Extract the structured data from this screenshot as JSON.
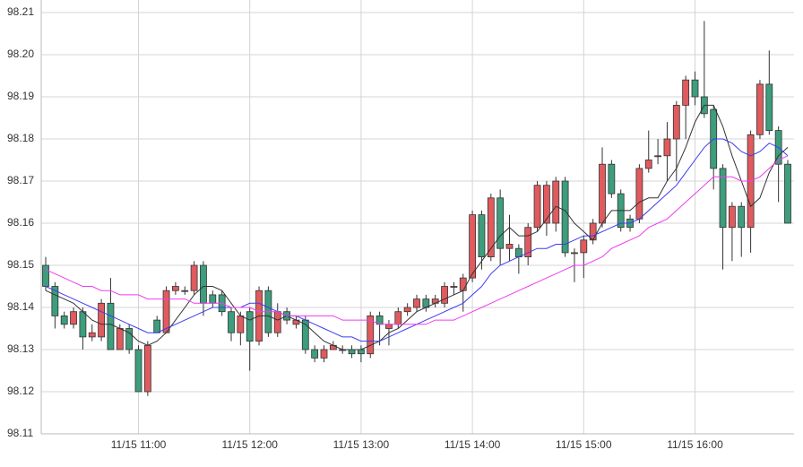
{
  "chart_data": {
    "type": "candlestick",
    "x": [
      "11/15 10:10",
      "11/15 10:15",
      "11/15 10:20",
      "11/15 10:25",
      "11/15 10:30",
      "11/15 10:35",
      "11/15 10:40",
      "11/15 10:45",
      "11/15 10:50",
      "11/15 10:55",
      "11/15 11:00",
      "11/15 11:05",
      "11/15 11:10",
      "11/15 11:15",
      "11/15 11:20",
      "11/15 11:25",
      "11/15 11:30",
      "11/15 11:35",
      "11/15 11:40",
      "11/15 11:45",
      "11/15 11:50",
      "11/15 11:55",
      "11/15 12:00",
      "11/15 12:05",
      "11/15 12:10",
      "11/15 12:15",
      "11/15 12:20",
      "11/15 12:25",
      "11/15 12:30",
      "11/15 12:35",
      "11/15 12:40",
      "11/15 12:45",
      "11/15 12:50",
      "11/15 12:55",
      "11/15 13:00",
      "11/15 13:05",
      "11/15 13:10",
      "11/15 13:15",
      "11/15 13:20",
      "11/15 13:25",
      "11/15 13:30",
      "11/15 13:35",
      "11/15 13:40",
      "11/15 13:45",
      "11/15 13:50",
      "11/15 13:55",
      "11/15 14:00",
      "11/15 14:05",
      "11/15 14:10",
      "11/15 14:15",
      "11/15 14:20",
      "11/15 14:25",
      "11/15 14:30",
      "11/15 14:35",
      "11/15 14:40",
      "11/15 14:45",
      "11/15 14:50",
      "11/15 14:55",
      "11/15 15:00",
      "11/15 15:05",
      "11/15 15:10",
      "11/15 15:15",
      "11/15 15:20",
      "11/15 15:25",
      "11/15 15:30",
      "11/15 15:35",
      "11/15 15:40",
      "11/15 15:45",
      "11/15 15:50",
      "11/15 15:55",
      "11/15 16:00",
      "11/15 16:05",
      "11/15 16:10",
      "11/15 16:15",
      "11/15 16:20",
      "11/15 16:25",
      "11/15 16:30",
      "11/15 16:35",
      "11/15 16:40",
      "11/15 16:45",
      "11/15 16:50"
    ],
    "open": [
      98.15,
      98.145,
      98.138,
      98.136,
      98.139,
      98.133,
      98.133,
      98.141,
      98.13,
      98.135,
      98.13,
      98.12,
      98.137,
      98.134,
      98.144,
      98.144,
      98.144,
      98.15,
      98.143,
      98.143,
      98.139,
      98.134,
      98.139,
      98.132,
      98.144,
      98.134,
      98.139,
      98.136,
      98.137,
      98.13,
      98.128,
      98.13,
      98.13,
      98.13,
      98.13,
      98.129,
      98.138,
      98.135,
      98.136,
      98.139,
      98.14,
      98.142,
      98.141,
      98.141,
      98.145,
      98.144,
      98.147,
      98.162,
      98.152,
      98.166,
      98.154,
      98.154,
      98.152,
      98.159,
      98.16,
      98.16,
      98.17,
      98.153,
      98.153,
      98.156,
      98.16,
      98.174,
      98.167,
      98.161,
      98.161,
      98.173,
      98.176,
      98.176,
      98.18,
      98.188,
      98.194,
      98.19,
      98.187,
      98.173,
      98.159,
      98.164,
      98.159,
      98.181,
      98.193,
      98.182,
      98.174
    ],
    "high": [
      98.152,
      98.146,
      98.139,
      98.14,
      98.14,
      98.136,
      98.142,
      98.147,
      98.136,
      98.136,
      98.131,
      98.132,
      98.138,
      98.145,
      98.146,
      98.145,
      98.151,
      98.151,
      98.144,
      98.144,
      98.14,
      98.139,
      98.14,
      98.145,
      98.145,
      98.141,
      98.14,
      98.138,
      98.138,
      98.131,
      98.131,
      98.132,
      98.131,
      98.131,
      98.131,
      98.139,
      98.139,
      98.137,
      98.14,
      98.141,
      98.143,
      98.143,
      98.143,
      98.146,
      98.146,
      98.148,
      98.163,
      98.163,
      98.167,
      98.168,
      98.162,
      98.155,
      98.16,
      98.17,
      98.17,
      98.171,
      98.171,
      98.154,
      98.157,
      98.161,
      98.178,
      98.175,
      98.168,
      98.162,
      98.174,
      98.182,
      98.18,
      98.184,
      98.189,
      98.195,
      98.196,
      98.208,
      98.188,
      98.174,
      98.165,
      98.165,
      98.182,
      98.194,
      98.201,
      98.183,
      98.175
    ],
    "low": [
      98.144,
      98.135,
      98.135,
      98.135,
      98.13,
      98.132,
      98.132,
      98.13,
      98.13,
      98.129,
      98.12,
      98.119,
      98.134,
      98.134,
      98.143,
      98.143,
      98.143,
      98.138,
      98.14,
      98.138,
      98.132,
      98.131,
      98.125,
      98.131,
      98.133,
      98.133,
      98.136,
      98.135,
      98.129,
      98.127,
      98.127,
      98.13,
      98.129,
      98.128,
      98.127,
      98.128,
      98.131,
      98.131,
      98.135,
      98.138,
      98.139,
      98.139,
      98.14,
      98.14,
      98.143,
      98.139,
      98.146,
      98.149,
      98.151,
      98.15,
      98.151,
      98.148,
      98.15,
      98.158,
      98.157,
      98.158,
      98.152,
      98.146,
      98.147,
      98.155,
      98.159,
      98.166,
      98.158,
      98.158,
      98.16,
      98.172,
      98.174,
      98.17,
      98.17,
      98.18,
      98.188,
      98.185,
      98.168,
      98.149,
      98.151,
      98.152,
      98.153,
      98.18,
      98.181,
      98.165,
      98.16
    ],
    "close": [
      98.145,
      98.138,
      98.136,
      98.139,
      98.133,
      98.134,
      98.141,
      98.13,
      98.135,
      98.13,
      98.12,
      98.131,
      98.134,
      98.144,
      98.145,
      98.144,
      98.15,
      98.141,
      98.141,
      98.139,
      98.134,
      98.138,
      98.132,
      98.144,
      98.134,
      98.139,
      98.137,
      98.137,
      98.13,
      98.128,
      98.13,
      98.131,
      98.13,
      98.129,
      98.129,
      98.138,
      98.136,
      98.136,
      98.139,
      98.14,
      98.142,
      98.14,
      98.142,
      98.145,
      98.145,
      98.147,
      98.162,
      98.152,
      98.166,
      98.154,
      98.155,
      98.152,
      98.159,
      98.169,
      98.169,
      98.17,
      98.153,
      98.153,
      98.156,
      98.16,
      98.174,
      98.167,
      98.159,
      98.159,
      98.173,
      98.175,
      98.176,
      98.18,
      98.188,
      98.194,
      98.19,
      98.186,
      98.173,
      98.159,
      98.164,
      98.159,
      98.181,
      98.193,
      98.182,
      98.174,
      98.16
    ],
    "up_color": "#e05a5e",
    "down_color": "#3d9d7c",
    "lines": [
      {
        "color": "#333333",
        "values": [
          98.144,
          98.143,
          98.142,
          98.141,
          98.139,
          98.137,
          98.136,
          98.136,
          98.135,
          98.134,
          98.132,
          98.131,
          98.132,
          98.134,
          98.137,
          98.14,
          98.143,
          98.145,
          98.145,
          98.144,
          98.141,
          98.138,
          98.137,
          98.138,
          98.138,
          98.137,
          98.138,
          98.137,
          98.136,
          98.134,
          98.132,
          98.131,
          98.13,
          98.13,
          98.13,
          98.131,
          98.132,
          98.134,
          98.135,
          98.137,
          98.139,
          98.14,
          98.141,
          98.142,
          98.143,
          98.144,
          98.148,
          98.151,
          98.154,
          98.157,
          98.159,
          98.157,
          98.157,
          98.158,
          98.161,
          98.164,
          98.163,
          98.16,
          98.158,
          98.156,
          98.16,
          98.163,
          98.163,
          98.163,
          98.165,
          98.166,
          98.166,
          98.17,
          98.173,
          98.178,
          98.184,
          98.188,
          98.188,
          98.183,
          98.176,
          98.17,
          98.164,
          98.166,
          98.172,
          98.176,
          98.178
        ]
      },
      {
        "color": "#3c3cf0",
        "values": [
          98.145,
          98.144,
          98.143,
          98.142,
          98.141,
          98.14,
          98.139,
          98.138,
          98.137,
          98.136,
          98.135,
          98.134,
          98.134,
          98.135,
          98.136,
          98.137,
          98.138,
          98.139,
          98.14,
          98.14,
          98.14,
          98.14,
          98.141,
          98.141,
          98.14,
          98.139,
          98.138,
          98.138,
          98.137,
          98.136,
          98.135,
          98.134,
          98.133,
          98.133,
          98.132,
          98.132,
          98.132,
          98.133,
          98.134,
          98.135,
          98.136,
          98.137,
          98.138,
          98.139,
          98.14,
          98.141,
          98.143,
          98.145,
          98.148,
          98.15,
          98.151,
          98.152,
          98.153,
          98.154,
          98.154,
          98.155,
          98.155,
          98.156,
          98.157,
          98.157,
          98.158,
          98.159,
          98.16,
          98.16,
          98.161,
          98.163,
          98.165,
          98.167,
          98.169,
          98.172,
          98.175,
          98.178,
          98.18,
          98.18,
          98.179,
          98.177,
          98.176,
          98.177,
          98.179,
          98.178,
          98.176
        ]
      },
      {
        "color": "#f03cf0",
        "values": [
          98.149,
          98.148,
          98.147,
          98.146,
          98.145,
          98.145,
          98.144,
          98.144,
          98.143,
          98.143,
          98.143,
          98.142,
          98.142,
          98.142,
          98.142,
          98.142,
          98.141,
          98.141,
          98.141,
          98.141,
          98.14,
          98.14,
          98.14,
          98.139,
          98.139,
          98.139,
          98.138,
          98.138,
          98.138,
          98.138,
          98.138,
          98.138,
          98.137,
          98.137,
          98.137,
          98.137,
          98.136,
          98.136,
          98.136,
          98.136,
          98.136,
          98.136,
          98.137,
          98.137,
          98.137,
          98.138,
          98.139,
          98.14,
          98.141,
          98.142,
          98.143,
          98.144,
          98.145,
          98.146,
          98.147,
          98.148,
          98.149,
          98.15,
          98.15,
          98.151,
          98.152,
          98.154,
          98.155,
          98.156,
          98.157,
          98.159,
          98.16,
          98.161,
          98.163,
          98.165,
          98.167,
          98.169,
          98.171,
          98.171,
          98.171,
          98.17,
          98.17,
          98.171,
          98.173,
          98.175,
          98.176
        ]
      }
    ],
    "ylim": [
      98.11,
      98.21
    ],
    "yticks": [
      98.11,
      98.12,
      98.13,
      98.14,
      98.15,
      98.16,
      98.17,
      98.18,
      98.19,
      {
        "value": 98.2,
        "label": "98.20"
      },
      98.21
    ],
    "xticks": [
      "11/15 11:00",
      "11/15 12:00",
      "11/15 13:00",
      "11/15 14:00",
      "11/15 15:00",
      "11/15 16:00"
    ],
    "grid": true
  }
}
